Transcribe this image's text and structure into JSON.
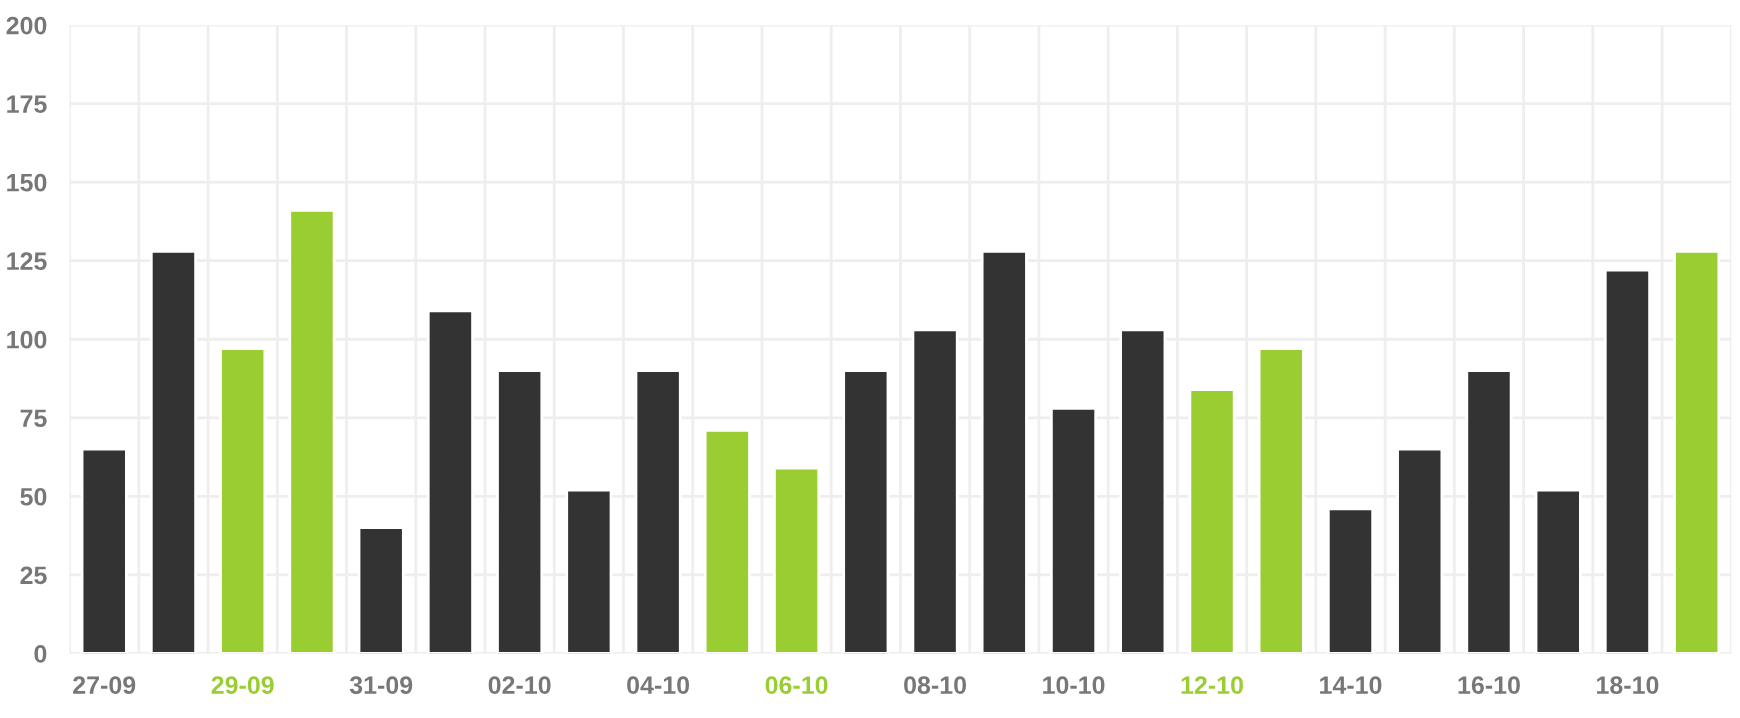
{
  "chart_data": {
    "type": "bar",
    "categories": [
      "27-09",
      null,
      "29-09",
      null,
      "31-09",
      null,
      "02-10",
      null,
      "04-10",
      null,
      "06-10",
      null,
      "08-10",
      null,
      "10-10",
      null,
      "12-10",
      null,
      "14-10",
      null,
      "16-10",
      null,
      "18-10",
      null
    ],
    "values": [
      65,
      128,
      97,
      141,
      40,
      109,
      90,
      52,
      90,
      71,
      59,
      90,
      103,
      128,
      78,
      103,
      84,
      97,
      46,
      65,
      90,
      52,
      122,
      128
    ],
    "colors": [
      "#333333",
      "#333333",
      "#9acd32",
      "#9acd32",
      "#333333",
      "#333333",
      "#333333",
      "#333333",
      "#333333",
      "#9acd32",
      "#9acd32",
      "#333333",
      "#333333",
      "#333333",
      "#333333",
      "#333333",
      "#9acd32",
      "#9acd32",
      "#333333",
      "#333333",
      "#333333",
      "#333333",
      "#333333",
      "#9acd32"
    ],
    "ylim": [
      0,
      200
    ],
    "yticks": [
      0,
      25,
      50,
      75,
      100,
      125,
      150,
      175,
      200
    ],
    "grid": true
  }
}
